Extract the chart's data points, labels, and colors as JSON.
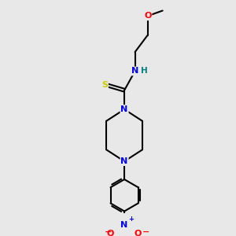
{
  "background_color": "#e8e8e8",
  "atom_colors": {
    "C": "#000000",
    "N": "#0000ff",
    "O": "#ff0000",
    "S": "#cccc00",
    "H": "#008080"
  },
  "bond_color": "#000000",
  "bond_width": 1.5,
  "figsize": [
    3.0,
    3.0
  ],
  "dpi": 100,
  "xlim": [
    0,
    10
  ],
  "ylim": [
    0,
    10
  ]
}
